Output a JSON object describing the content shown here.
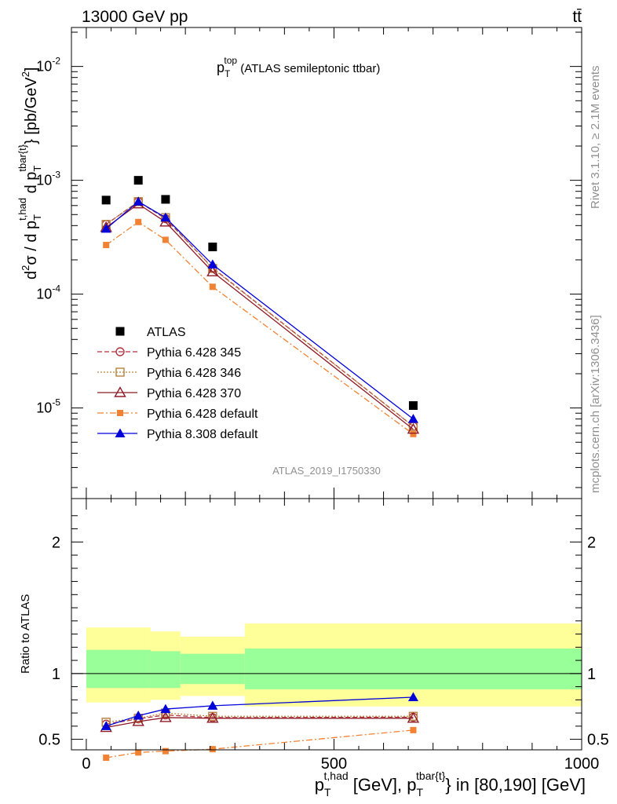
{
  "header": {
    "energy": "13000 GeV pp",
    "process": "tt̄"
  },
  "side": {
    "rivet": "Rivet 3.1.10, ≥ 2.1M events",
    "source": "mcplots.cern.ch [arXiv:1306.3436]"
  },
  "analysis_id": "ATLAS_2019_I1750330",
  "colors": {
    "ATLAS": "#000000",
    "p345": "#b2323d",
    "p346": "#b7823f",
    "p370": "#8e1a26",
    "p6def": "#f28233",
    "p8": "#0000d9",
    "band_inner": "#99ff99",
    "band_outer": "#ffff99"
  },
  "chart_data": [
    {
      "type": "scatter",
      "title_main": "p",
      "title_sub": "T",
      "title_sup": "top",
      "title_rest": " (ATLAS semileptonic ttbar)",
      "ylabel": "d²σ / d p_T^{t,had} d p_T^{tbar{t}} [pb/GeV²]",
      "yscale": "log",
      "xlim": [
        -30,
        1000
      ],
      "ylim": [
        1.6e-06,
        0.022
      ],
      "yticks": [
        {
          "v": 1e-05,
          "e": "-5"
        },
        {
          "v": 0.0001,
          "e": "-4"
        },
        {
          "v": 0.001,
          "e": "-3"
        },
        {
          "v": 0.01,
          "e": "-2"
        }
      ],
      "x": [
        40,
        105,
        160,
        255,
        660
      ],
      "series": [
        {
          "name": "ATLAS",
          "key": "ATLAS",
          "marker": "square",
          "line": "none",
          "values": [
            0.00067,
            0.001,
            0.00068,
            0.00026,
            1.05e-05
          ]
        },
        {
          "name": "Pythia 6.428 345",
          "key": "p345",
          "marker": "circle-open",
          "line": "dashed",
          "values": [
            0.00041,
            0.00065,
            0.00046,
            0.00017,
            6.9e-06
          ]
        },
        {
          "name": "Pythia 6.428 346",
          "key": "p346",
          "marker": "square-open",
          "line": "dotted",
          "values": [
            0.00041,
            0.00065,
            0.00047,
            0.000168,
            6.9e-06
          ]
        },
        {
          "name": "Pythia 6.428 370",
          "key": "p370",
          "marker": "triangle-open",
          "line": "solid",
          "values": [
            0.000385,
            0.00062,
            0.00043,
            0.000157,
            6.5e-06
          ]
        },
        {
          "name": "Pythia 6.428 default",
          "key": "p6def",
          "marker": "square-small",
          "line": "dashdot",
          "values": [
            0.00027,
            0.00043,
            0.0003,
            0.000116,
            5.9e-06
          ]
        },
        {
          "name": "Pythia 8.308 default",
          "key": "p8",
          "marker": "triangle",
          "line": "solid",
          "values": [
            0.000375,
            0.00065,
            0.00047,
            0.000182,
            8e-06
          ]
        }
      ]
    },
    {
      "type": "line",
      "ylabel": "Ratio to ATLAS",
      "xlabel_main": "p",
      "xlabel_sub1": "T",
      "xlabel_sup1": "t,had",
      "xlabel_mid": " [GeV], p",
      "xlabel_sub2": "T",
      "xlabel_sup2": "tbar{t}",
      "xlabel_rest": "} in [80,190] [GeV]",
      "xlim": [
        -30,
        1000
      ],
      "ylim": [
        0.42,
        2.33
      ],
      "xticks": [
        0,
        500,
        1000
      ],
      "yticks": [
        0.5,
        1,
        2
      ],
      "bands": [
        {
          "x": [
            0,
            130
          ],
          "inner": [
            0.89,
            1.18
          ],
          "outer": [
            0.78,
            1.35
          ]
        },
        {
          "x": [
            130,
            190
          ],
          "inner": [
            0.89,
            1.17
          ],
          "outer": [
            0.8,
            1.32
          ]
        },
        {
          "x": [
            190,
            320
          ],
          "inner": [
            0.92,
            1.15
          ],
          "outer": [
            0.83,
            1.28
          ]
        },
        {
          "x": [
            320,
            1000
          ],
          "inner": [
            0.88,
            1.19
          ],
          "outer": [
            0.75,
            1.38
          ]
        }
      ],
      "x": [
        40,
        105,
        160,
        255,
        660
      ],
      "series": [
        {
          "key": "p345",
          "values": [
            0.615,
            0.655,
            0.685,
            0.665,
            0.668
          ]
        },
        {
          "key": "p346",
          "values": [
            0.63,
            0.66,
            0.7,
            0.675,
            0.675
          ]
        },
        {
          "key": "p370",
          "values": [
            0.59,
            0.635,
            0.665,
            0.66,
            0.66
          ]
        },
        {
          "key": "p6def",
          "values": [
            0.36,
            0.4,
            0.41,
            0.425,
            0.57
          ]
        },
        {
          "key": "p8",
          "values": [
            0.6,
            0.68,
            0.73,
            0.755,
            0.82
          ]
        }
      ]
    }
  ]
}
